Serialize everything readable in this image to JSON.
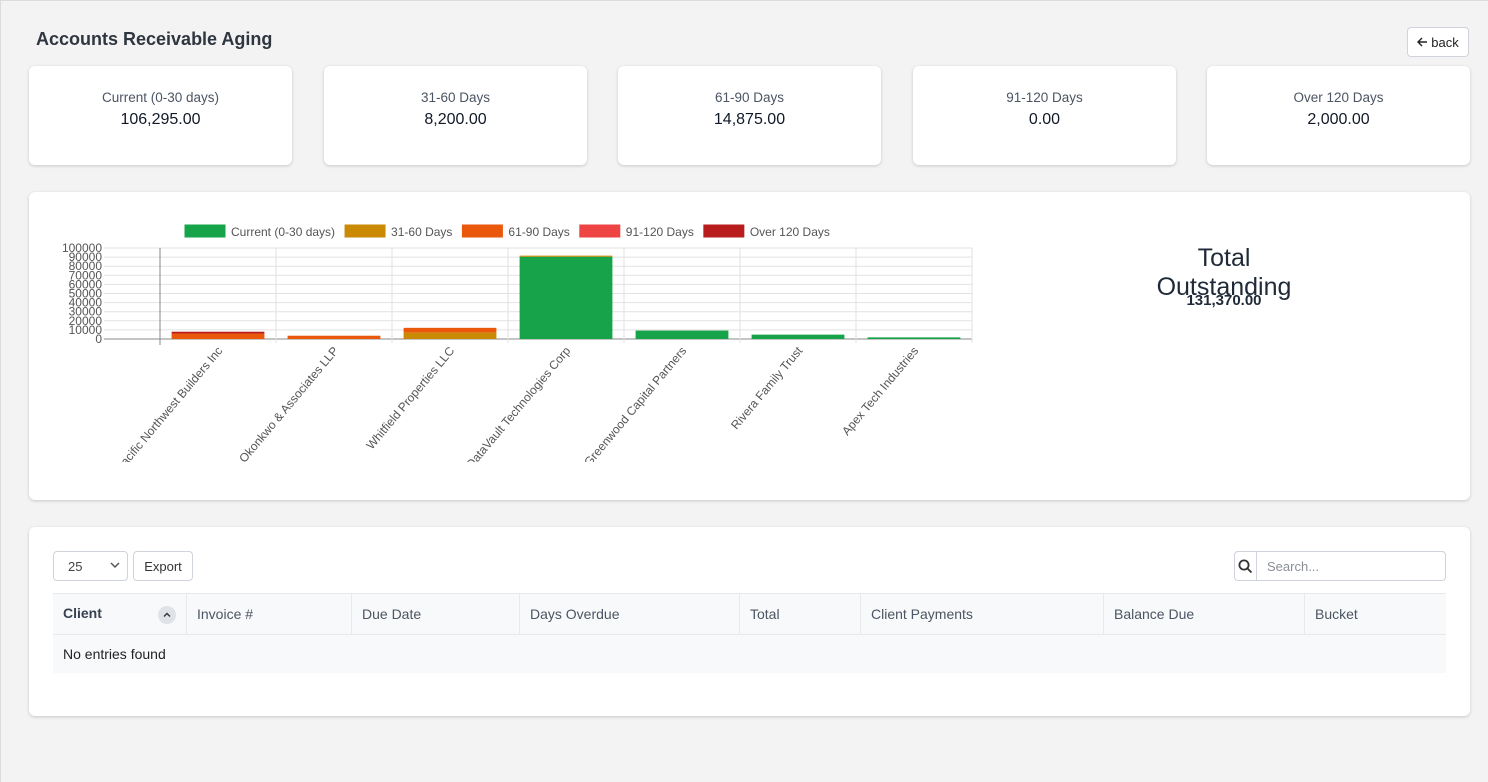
{
  "header": {
    "title": "Accounts Receivable Aging",
    "back_label": "back"
  },
  "summary_cards": [
    {
      "label": "Current (0-30 days)",
      "value": "106,295.00"
    },
    {
      "label": "31-60 Days",
      "value": "8,200.00"
    },
    {
      "label": "61-90 Days",
      "value": "14,875.00"
    },
    {
      "label": "91-120 Days",
      "value": "0.00"
    },
    {
      "label": "Over 120 Days",
      "value": "2,000.00"
    }
  ],
  "total": {
    "title": "Total Outstanding",
    "value": "131,370.00"
  },
  "colors": {
    "current": "#16a34a",
    "d31_60": "#ca8a04",
    "d61_90": "#ea580c",
    "d91_120": "#ef4444",
    "over120": "#b91c1c"
  },
  "chart_data": {
    "type": "bar",
    "stacked": true,
    "categories": [
      "Pacific Northwest Builders Inc",
      "Okonkwo & Associates LLP",
      "Whitfield Properties LLC",
      "DataVault Technologies Corp",
      "Greenwood Capital Partners",
      "Rivera Family Trust",
      "Apex Tech Industries"
    ],
    "series": [
      {
        "name": "Current (0-30 days)",
        "color": "#16a34a",
        "values": [
          0,
          0,
          0,
          90400,
          9300,
          4800,
          1795
        ]
      },
      {
        "name": "31-60 Days",
        "color": "#ca8a04",
        "values": [
          0,
          0,
          7000,
          1200,
          0,
          0,
          0
        ]
      },
      {
        "name": "61-90 Days",
        "color": "#ea580c",
        "values": [
          6000,
          3600,
          5275,
          0,
          0,
          0,
          0
        ]
      },
      {
        "name": "91-120 Days",
        "color": "#ef4444",
        "values": [
          0,
          0,
          0,
          0,
          0,
          0,
          0
        ]
      },
      {
        "name": "Over 120 Days",
        "color": "#b91c1c",
        "values": [
          2000,
          0,
          0,
          0,
          0,
          0,
          0
        ]
      }
    ],
    "yticks": [
      "100000",
      "90000",
      "80000",
      "70000",
      "60000",
      "50000",
      "40000",
      "30000",
      "20000",
      "10000",
      "0"
    ],
    "ylim": [
      0,
      100000
    ],
    "legend": "top",
    "grid": true
  },
  "table": {
    "page_length": "25",
    "export_label": "Export",
    "search_placeholder": "Search...",
    "columns": [
      "Client",
      "Invoice #",
      "Due Date",
      "Days Overdue",
      "Total",
      "Client Payments",
      "Balance Due",
      "Bucket"
    ],
    "empty_message": "No entries found"
  }
}
